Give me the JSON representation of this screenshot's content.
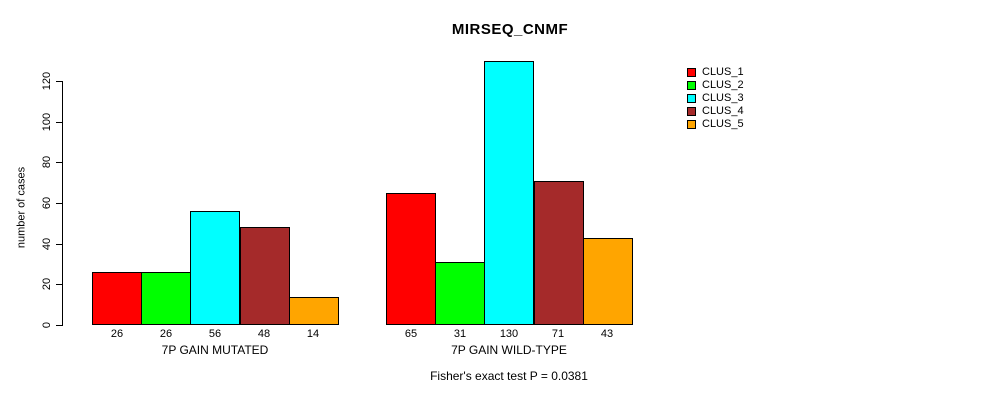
{
  "chart_data": {
    "type": "bar",
    "title": "MIRSEQ_CNMF",
    "ylabel": "number of cases",
    "ylim": [
      0,
      130
    ],
    "yticks": [
      0,
      20,
      40,
      60,
      80,
      100,
      120
    ],
    "grid": false,
    "legend_position": "right",
    "categories": [
      "CLUS_1",
      "CLUS_2",
      "CLUS_3",
      "CLUS_4",
      "CLUS_5"
    ],
    "series_colors": [
      "#ff0000",
      "#00ff00",
      "#00ffff",
      "#a52a2a",
      "#ffa500"
    ],
    "groups": [
      {
        "label": "7P GAIN MUTATED",
        "values": [
          26,
          26,
          56,
          48,
          14
        ]
      },
      {
        "label": "7P GAIN WILD-TYPE",
        "values": [
          65,
          31,
          130,
          71,
          43
        ]
      }
    ],
    "footnote": "Fisher's exact test P = 0.0381"
  },
  "legend": {
    "items": [
      {
        "label": "CLUS_1",
        "color": "#ff0000"
      },
      {
        "label": "CLUS_2",
        "color": "#00ff00"
      },
      {
        "label": "CLUS_3",
        "color": "#00ffff"
      },
      {
        "label": "CLUS_4",
        "color": "#a52a2a"
      },
      {
        "label": "CLUS_5",
        "color": "#ffa500"
      }
    ]
  },
  "colors": {
    "background": "#ffffff",
    "axis": "#000000",
    "text": "#000000"
  }
}
